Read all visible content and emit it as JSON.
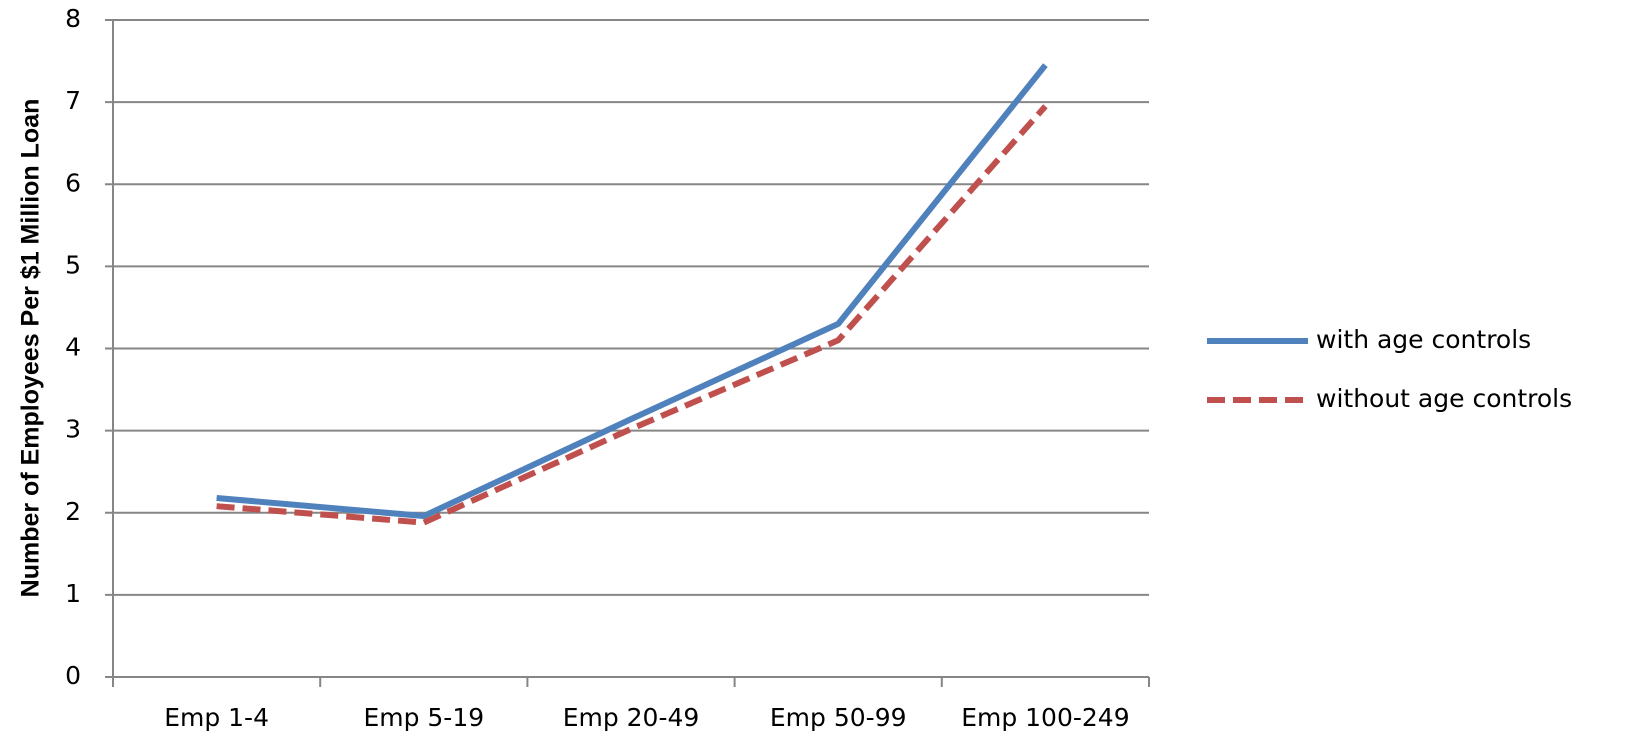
{
  "chart_data": {
    "type": "line",
    "y_label": "Number of Employees Per $1 Million Loan",
    "categories": [
      "Emp 1-4",
      "Emp 5-19",
      "Emp 20-49",
      "Emp 50-99",
      "Emp 100-249"
    ],
    "series": [
      {
        "name": "with age controls",
        "color": "#4f81bd",
        "dash": "solid",
        "values": [
          2.18,
          1.96,
          3.14,
          4.3,
          7.45
        ]
      },
      {
        "name": "without age controls",
        "color": "#c0504d",
        "dash": "dashed",
        "values": [
          2.08,
          1.88,
          3.02,
          4.1,
          6.95
        ]
      }
    ],
    "ylim": [
      0,
      8
    ],
    "yticks": [
      0,
      1,
      2,
      3,
      4,
      5,
      6,
      7,
      8
    ],
    "grid": true,
    "legend": "right"
  }
}
